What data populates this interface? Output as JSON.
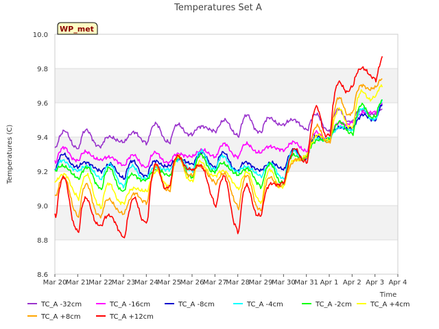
{
  "chart_data": {
    "type": "line",
    "title": "Temperatures Set A",
    "xlabel": "Time",
    "ylabel": "Temperatures (C)",
    "ylim": [
      8.6,
      10.0
    ],
    "yticks": [
      "8.6",
      "8.8",
      "9.0",
      "9.2",
      "9.4",
      "9.6",
      "9.8",
      "10.0"
    ],
    "xlim_days": [
      0,
      15
    ],
    "xtick_labels": [
      "Mar 20",
      "Mar 21",
      "Mar 22",
      "Mar 23",
      "Mar 24",
      "Mar 25",
      "Mar 26",
      "Mar 27",
      "Mar 28",
      "Mar 29",
      "Mar 30",
      "Mar 31",
      "Apr 1",
      "Apr 2",
      "Apr 3",
      "Apr 4"
    ],
    "badge": "WP_met",
    "grid": "horizontal bands",
    "legend_position": "bottom",
    "x": [
      "Mar 20",
      "Mar 21",
      "Mar 22",
      "Mar 23",
      "Mar 24",
      "Mar 25",
      "Mar 26",
      "Mar 27",
      "Mar 28",
      "Mar 29",
      "Mar 30",
      "Mar 31",
      "Apr 1",
      "Apr 2",
      "Apr 3"
    ],
    "series": [
      {
        "name": "TC_A -32cm",
        "color": "#9932cc",
        "values": [
          9.38,
          9.4,
          9.38,
          9.39,
          9.42,
          9.43,
          9.44,
          9.46,
          9.47,
          9.48,
          9.49,
          9.48,
          9.5,
          9.53,
          9.55
        ]
      },
      {
        "name": "TC_A -16cm",
        "color": "#ff00ff",
        "values": [
          9.3,
          9.3,
          9.28,
          9.26,
          9.27,
          9.28,
          9.3,
          9.32,
          9.33,
          9.33,
          9.34,
          9.36,
          9.43,
          9.5,
          9.57
        ]
      },
      {
        "name": "TC_A -8cm",
        "color": "#0000cd",
        "values": [
          9.27,
          9.25,
          9.22,
          9.21,
          9.22,
          9.25,
          9.27,
          9.28,
          9.24,
          9.22,
          9.25,
          9.33,
          9.42,
          9.47,
          9.55
        ]
      },
      {
        "name": "TC_A -4cm",
        "color": "#00ffff",
        "values": [
          9.25,
          9.22,
          9.2,
          9.18,
          9.19,
          9.23,
          9.26,
          9.27,
          9.22,
          9.2,
          9.22,
          9.33,
          9.41,
          9.48,
          9.57
        ]
      },
      {
        "name": "TC_A -2cm",
        "color": "#00ff00",
        "values": [
          9.23,
          9.19,
          9.17,
          9.14,
          9.17,
          9.22,
          9.24,
          9.24,
          9.2,
          9.17,
          9.2,
          9.32,
          9.42,
          9.49,
          9.58
        ]
      },
      {
        "name": "TC_A +4cm",
        "color": "#ffff00",
        "values": [
          9.17,
          9.12,
          9.08,
          9.05,
          9.12,
          9.2,
          9.22,
          9.2,
          9.15,
          9.11,
          9.17,
          9.32,
          9.45,
          9.55,
          9.68
        ]
      },
      {
        "name": "TC_A +8cm",
        "color": "#ffa500",
        "values": [
          9.12,
          9.05,
          9.01,
          8.98,
          9.1,
          9.2,
          9.23,
          9.17,
          9.09,
          9.07,
          9.16,
          9.33,
          9.48,
          9.62,
          9.72
        ]
      },
      {
        "name": "TC_A +12cm",
        "color": "#ff0000",
        "values": [
          9.08,
          8.98,
          8.93,
          8.88,
          9.05,
          9.22,
          9.25,
          9.1,
          9.0,
          9.02,
          9.18,
          9.38,
          9.55,
          9.75,
          9.8
        ]
      }
    ],
    "legend": [
      {
        "name": "TC_A -32cm",
        "color": "#9932cc"
      },
      {
        "name": "TC_A -16cm",
        "color": "#ff00ff"
      },
      {
        "name": "TC_A -8cm",
        "color": "#0000cd"
      },
      {
        "name": "TC_A -4cm",
        "color": "#00ffff"
      },
      {
        "name": "TC_A -2cm",
        "color": "#00ff00"
      },
      {
        "name": "TC_A +4cm",
        "color": "#ffff00"
      },
      {
        "name": "TC_A +8cm",
        "color": "#ffa500"
      },
      {
        "name": "TC_A +12cm",
        "color": "#ff0000"
      }
    ]
  }
}
